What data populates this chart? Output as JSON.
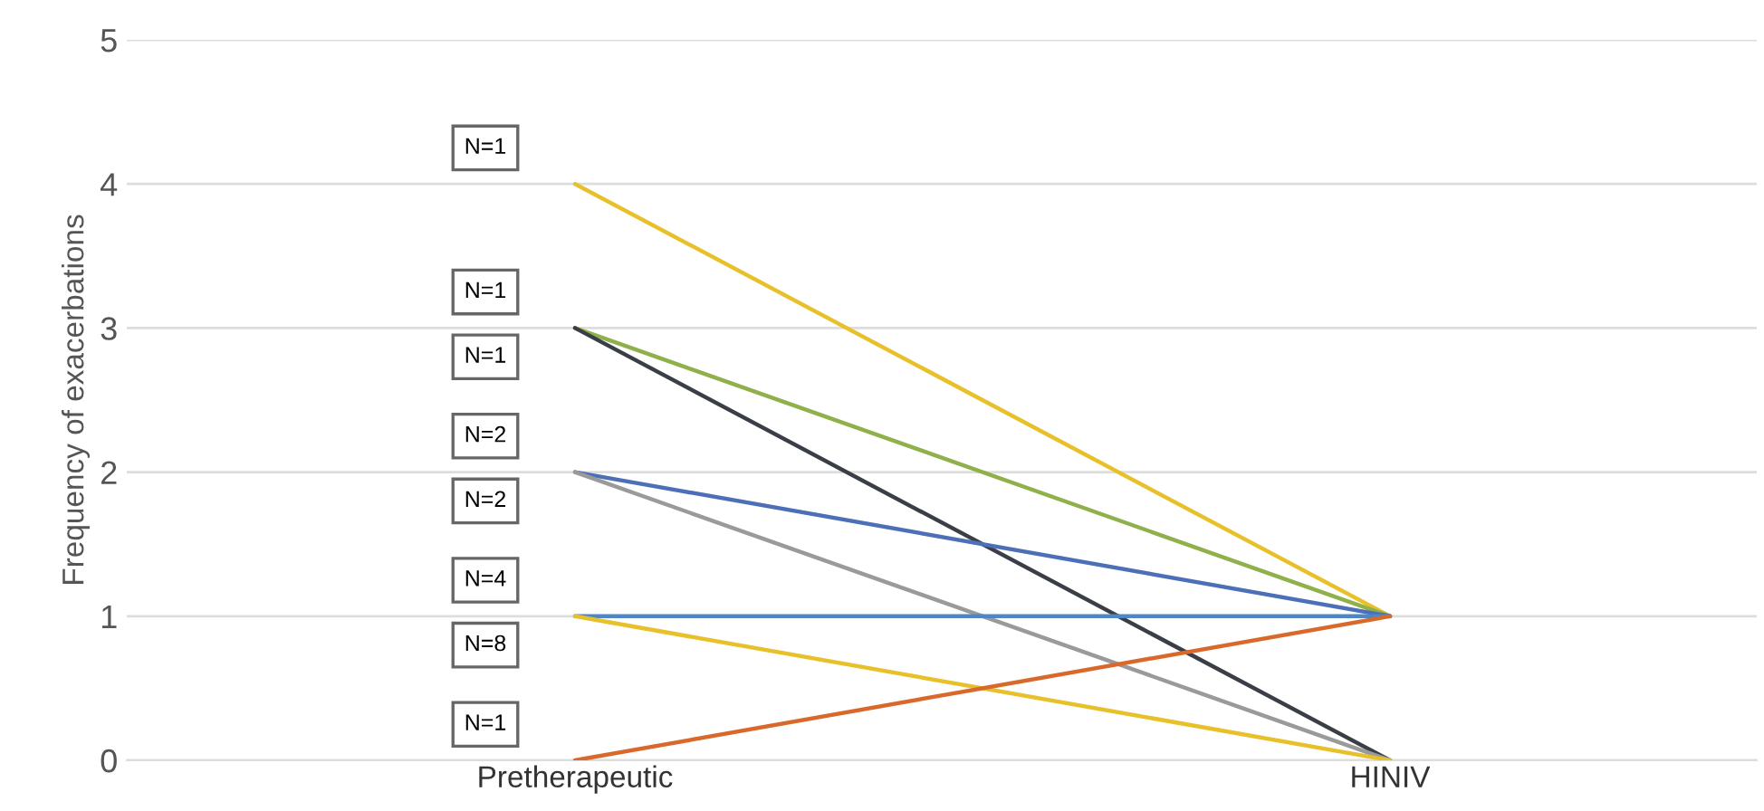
{
  "chart_data": {
    "type": "line",
    "ylabel": "Frequency of exacerbations",
    "categories": [
      "Pretherapeutic",
      "HINIV"
    ],
    "ylim": [
      0,
      5
    ],
    "yticks": [
      0,
      1,
      2,
      3,
      4,
      5
    ],
    "grid": "y",
    "marker": "none",
    "line_style": "solid",
    "series": [
      {
        "color": "#e8c02a",
        "values": [
          4,
          1
        ]
      },
      {
        "color": "#8fb04a",
        "values": [
          3,
          1
        ]
      },
      {
        "color": "#3a3f47",
        "values": [
          3,
          0
        ]
      },
      {
        "color": "#4d6fb8",
        "values": [
          2,
          1
        ]
      },
      {
        "color": "#9a9a9a",
        "values": [
          2,
          0
        ]
      },
      {
        "color": "#4f86c6",
        "values": [
          1,
          1
        ]
      },
      {
        "color": "#e8c02a",
        "values": [
          1,
          0
        ]
      },
      {
        "color": "#d9692a",
        "values": [
          0,
          1
        ]
      }
    ],
    "annotations": [
      "N=1",
      "N=1",
      "N=1",
      "N=2",
      "N=2",
      "N=4",
      "N=8",
      "N=1"
    ]
  }
}
